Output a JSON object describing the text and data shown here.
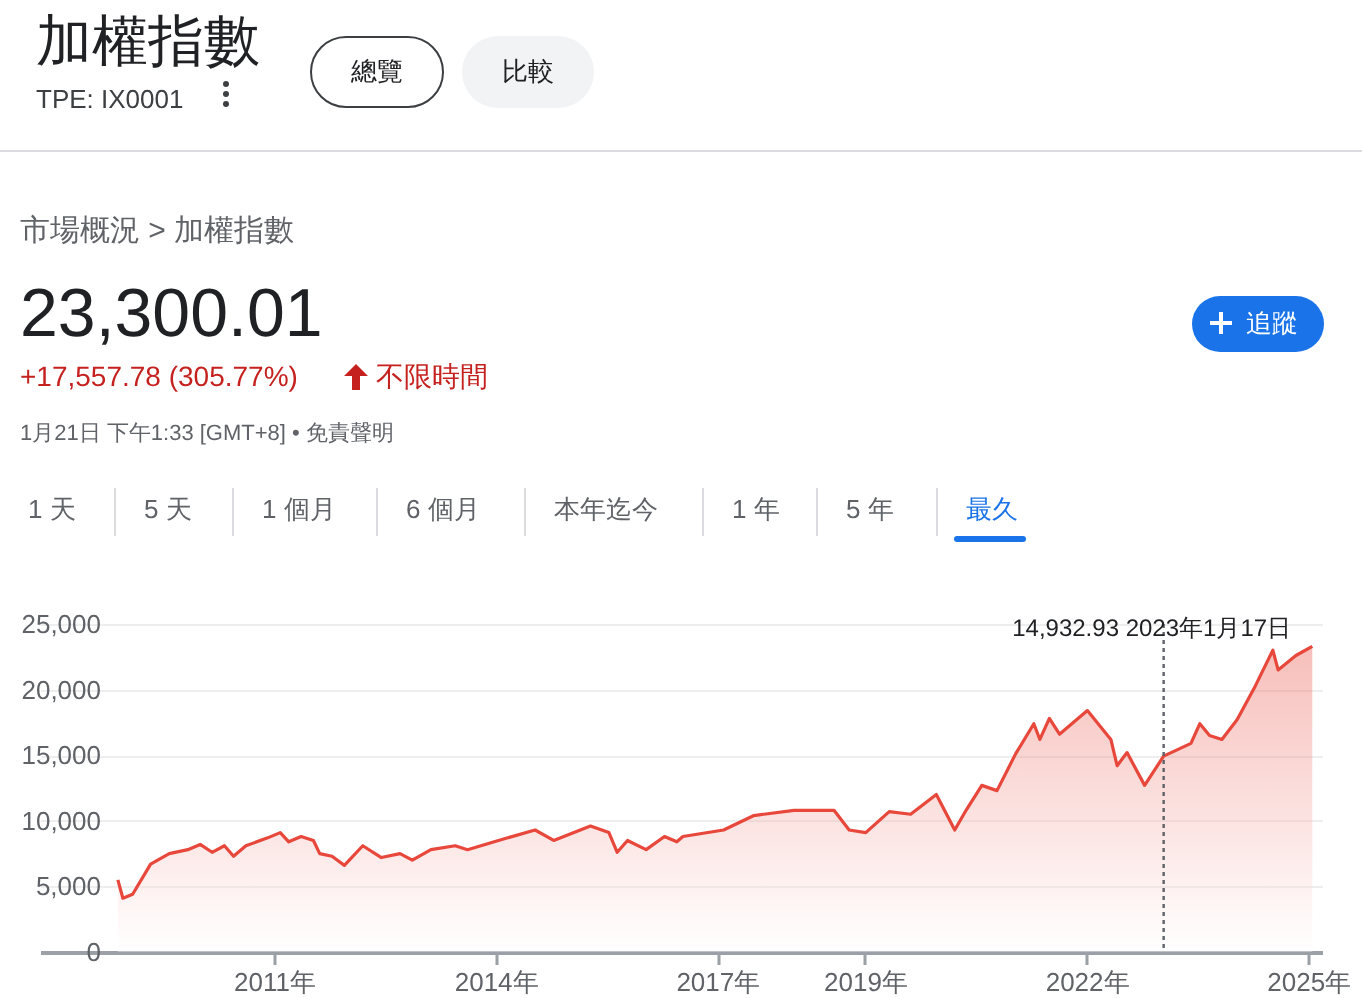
{
  "chart_data": {
    "type": "area",
    "title": "加權指數",
    "subtitle": "TPE: IX0001",
    "annotations": [
      "總覽",
      "比較",
      "市場概況 > 加權指數",
      "23,300.01",
      "+17,557.78 (305.77%)",
      "不限時間",
      "1月21日 下午1:33 [GMT+8] • 免責聲明",
      "追蹤",
      "1 天",
      "5 天",
      "1 個月",
      "6 個月",
      "本年迄今",
      "1 年",
      "5 年",
      "最久"
    ],
    "x": [
      "2008-11-20",
      "2008-12-15",
      "2009-02-01",
      "2009-05-01",
      "2009-08-01",
      "2009-11-01",
      "2010-01-01",
      "2010-03-01",
      "2010-05-01",
      "2010-06-15",
      "2010-08-15",
      "2010-12-01",
      "2011-02-01",
      "2011-03-15",
      "2011-05-15",
      "2011-07-15",
      "2011-08-15",
      "2011-10-15",
      "2011-12-15",
      "2012-03-15",
      "2012-06-15",
      "2012-09-15",
      "2012-11-15",
      "2013-02-15",
      "2013-06-15",
      "2013-08-15",
      "2014-01-15",
      "2014-07-15",
      "2014-10-15",
      "2015-04-15",
      "2015-07-15",
      "2015-08-25",
      "2015-10-15",
      "2016-01-15",
      "2016-04-15",
      "2016-06-15",
      "2016-07-15",
      "2017-02-01",
      "2017-07-01",
      "2018-01-15",
      "2018-08-01",
      "2018-10-15",
      "2019-01-05",
      "2019-05-01",
      "2019-08-15",
      "2019-12-20",
      "2020-03-20",
      "2020-05-15",
      "2020-08-01",
      "2020-10-15",
      "2021-01-15",
      "2021-04-15",
      "2021-05-15",
      "2021-07-01",
      "2021-08-20",
      "2022-01-05",
      "2022-05-01",
      "2022-06-01",
      "2022-07-20",
      "2022-10-15",
      "2023-01-17",
      "2023-06-01",
      "2023-07-15",
      "2023-09-01",
      "2023-11-01",
      "2024-01-15",
      "2024-04-15",
      "2024-07-10",
      "2024-08-05",
      "2024-11-01",
      "2025-01-21"
    ],
    "series": [
      {
        "color": "#e8473b",
        "values": [
          5500,
          4100,
          4400,
          6700,
          7500,
          7800,
          8200,
          7600,
          8100,
          7300,
          8100,
          8700,
          9100,
          8400,
          8800,
          8500,
          7500,
          7300,
          6600,
          8100,
          7200,
          7500,
          7000,
          7800,
          8100,
          7800,
          8500,
          9300,
          8500,
          9600,
          9100,
          7600,
          8500,
          7800,
          8800,
          8400,
          8800,
          9300,
          10400,
          10800,
          10800,
          9300,
          9100,
          10700,
          10500,
          12000,
          9300,
          10800,
          12700,
          12300,
          15100,
          17400,
          16200,
          17800,
          16600,
          18400,
          16200,
          14200,
          15200,
          12700,
          14932.93,
          15900,
          17400,
          16500,
          16200,
          17700,
          20300,
          23000,
          21500,
          22600,
          23300.01
        ]
      }
    ],
    "xlim": [
      "2007-11-01",
      "2025-03-10"
    ],
    "xticks": [
      {
        "value": "2011-01-01",
        "label": "2011年"
      },
      {
        "value": "2014-01-01",
        "label": "2014年"
      },
      {
        "value": "2017-01-01",
        "label": "2017年"
      },
      {
        "value": "2019-01-01",
        "label": "2019年"
      },
      {
        "value": "2022-01-01",
        "label": "2022年"
      },
      {
        "value": "2025-01-01",
        "label": "2025年"
      }
    ],
    "ylim": [
      0,
      25000
    ],
    "yticks": [
      0,
      {
        "value": 5000,
        "label": "5,000"
      },
      {
        "value": 10000,
        "label": "10,000"
      },
      {
        "value": 15000,
        "label": "15,000"
      },
      {
        "value": 20000,
        "label": "20,000"
      },
      {
        "value": 25000,
        "label": "25,000"
      }
    ],
    "grid": "y",
    "ref_lines": [
      {
        "axis": "x",
        "value": "2023-01-17",
        "label": "14,932.93  2023年1月17日",
        "line_style": "dotted"
      }
    ]
  }
}
